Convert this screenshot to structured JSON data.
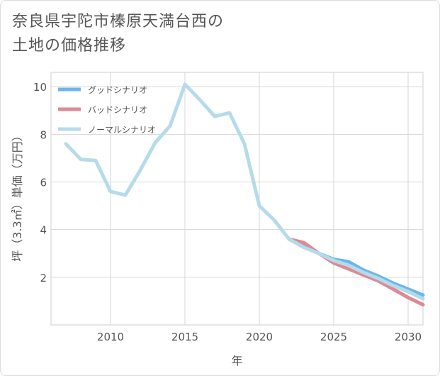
{
  "title_line1": "奈良県宇陀市榛原天満台西の",
  "title_line2": "土地の価格推移",
  "chart_data": {
    "type": "line",
    "xlabel": "年",
    "ylabel": "坪（3.3㎡）単価（万円）",
    "xlim": [
      2006,
      2031
    ],
    "ylim": [
      0,
      10.6
    ],
    "xticks": [
      2010,
      2015,
      2020,
      2025,
      2030
    ],
    "yticks": [
      2,
      4,
      6,
      8,
      10
    ],
    "grid": true,
    "legend_position": "top-left",
    "series": [
      {
        "name": "グッドシナリオ",
        "color": "#6cb6ea",
        "x": [
          2022,
          2023,
          2024,
          2025,
          2026,
          2027,
          2028,
          2029,
          2030,
          2031
        ],
        "y": [
          3.6,
          3.3,
          3.0,
          2.75,
          2.65,
          2.3,
          2.05,
          1.75,
          1.5,
          1.25
        ]
      },
      {
        "name": "バッドシナリオ",
        "color": "#dd8a93",
        "x": [
          2022,
          2023,
          2024,
          2025,
          2026,
          2027,
          2028,
          2029,
          2030,
          2031
        ],
        "y": [
          3.6,
          3.45,
          3.0,
          2.6,
          2.35,
          2.1,
          1.85,
          1.5,
          1.15,
          0.85
        ]
      },
      {
        "name": "ノーマルシナリオ",
        "color": "#b5dbea",
        "x": [
          2007,
          2008,
          2009,
          2010,
          2011,
          2012,
          2013,
          2014,
          2015,
          2016,
          2017,
          2018,
          2019,
          2020,
          2021,
          2022,
          2023,
          2024,
          2025,
          2026,
          2027,
          2028,
          2029,
          2030,
          2031
        ],
        "y": [
          7.6,
          6.95,
          6.9,
          5.6,
          5.45,
          6.5,
          7.65,
          8.35,
          10.1,
          9.45,
          8.75,
          8.9,
          7.6,
          5.0,
          4.4,
          3.6,
          3.25,
          3.0,
          2.7,
          2.5,
          2.2,
          1.95,
          1.65,
          1.4,
          1.1
        ]
      }
    ]
  }
}
